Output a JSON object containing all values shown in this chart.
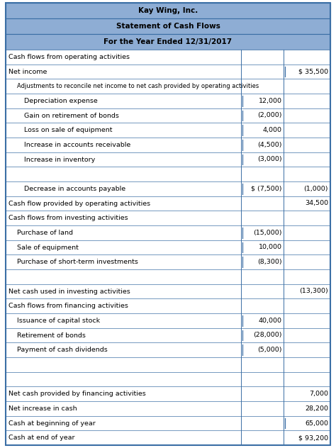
{
  "title1": "Kay Wing, Inc.",
  "title2": "Statement of Cash Flows",
  "title3": "For the Year Ended 12/31/2017",
  "header_bg": "#8eadd4",
  "table_border": "#3a6ea5",
  "rows": [
    {
      "label": "Cash flows from operating activities",
      "col1": "",
      "col2": "",
      "indent": 0,
      "tick1": false,
      "tick2": false
    },
    {
      "label": "Net income",
      "col1": "",
      "col2": "$ 35,500",
      "indent": 0,
      "tick1": false,
      "tick2": true
    },
    {
      "label": "Adjustments to reconcile net income to net cash provided by operating activities",
      "col1": "",
      "col2": "",
      "indent": 1,
      "tick1": false,
      "tick2": false,
      "small": true
    },
    {
      "label": "Depreciation expense",
      "col1": "12,000",
      "col2": "",
      "indent": 2,
      "tick1": true,
      "tick2": false
    },
    {
      "label": "Gain on retirement of bonds",
      "col1": "(2,000)",
      "col2": "",
      "indent": 2,
      "tick1": true,
      "tick2": false
    },
    {
      "label": "Loss on sale of equipment",
      "col1": "4,000",
      "col2": "",
      "indent": 2,
      "tick1": true,
      "tick2": false
    },
    {
      "label": "Increase in accounts receivable",
      "col1": "(4,500)",
      "col2": "",
      "indent": 2,
      "tick1": true,
      "tick2": false
    },
    {
      "label": "Increase in inventory",
      "col1": "(3,000)",
      "col2": "",
      "indent": 2,
      "tick1": true,
      "tick2": false
    },
    {
      "label": "",
      "col1": "",
      "col2": "",
      "indent": 2,
      "tick1": true,
      "tick2": false,
      "empty": true
    },
    {
      "label": "Decrease in accounts payable",
      "col1": "$ (7,500)",
      "col2": "(1,000)",
      "indent": 2,
      "tick1": true,
      "tick2": false
    },
    {
      "label": "Cash flow provided by operating activities",
      "col1": "",
      "col2": "34,500",
      "indent": 0,
      "tick1": false,
      "tick2": false
    },
    {
      "label": "Cash flows from investing activities",
      "col1": "",
      "col2": "",
      "indent": 0,
      "tick1": false,
      "tick2": false
    },
    {
      "label": "Purchase of land",
      "col1": "(15,000)",
      "col2": "",
      "indent": 1,
      "tick1": true,
      "tick2": false
    },
    {
      "label": "Sale of equipment",
      "col1": "10,000",
      "col2": "",
      "indent": 1,
      "tick1": true,
      "tick2": false
    },
    {
      "label": "Purchase of short-term investments",
      "col1": "(8,300)",
      "col2": "",
      "indent": 1,
      "tick1": true,
      "tick2": false
    },
    {
      "label": "",
      "col1": "",
      "col2": "",
      "indent": 1,
      "tick1": true,
      "tick2": false,
      "empty": true
    },
    {
      "label": "Net cash used in investing activities",
      "col1": "",
      "col2": "(13,300)",
      "indent": 0,
      "tick1": false,
      "tick2": false
    },
    {
      "label": "Cash flows from financing activities",
      "col1": "",
      "col2": "",
      "indent": 0,
      "tick1": false,
      "tick2": false
    },
    {
      "label": "Issuance of capital stock",
      "col1": "40,000",
      "col2": "",
      "indent": 1,
      "tick1": true,
      "tick2": false
    },
    {
      "label": "Retirement of bonds",
      "col1": "(28,000)",
      "col2": "",
      "indent": 1,
      "tick1": true,
      "tick2": false
    },
    {
      "label": "Payment of cash dividends",
      "col1": "(5,000)",
      "col2": "",
      "indent": 1,
      "tick1": true,
      "tick2": false
    },
    {
      "label": "",
      "col1": "",
      "col2": "",
      "indent": 1,
      "tick1": true,
      "tick2": false,
      "empty": true
    },
    {
      "label": "",
      "col1": "",
      "col2": "",
      "indent": 0,
      "tick1": false,
      "tick2": false,
      "empty": true
    },
    {
      "label": "Net cash provided by financing activities",
      "col1": "",
      "col2": "7,000",
      "indent": 0,
      "tick1": false,
      "tick2": false
    },
    {
      "label": "Net increase in cash",
      "col1": "",
      "col2": "28,200",
      "indent": 0,
      "tick1": false,
      "tick2": false
    },
    {
      "label": "Cash at beginning of year",
      "col1": "",
      "col2": "65,000",
      "indent": 0,
      "tick1": false,
      "tick2": true
    },
    {
      "label": "Cash at end of year",
      "col1": "",
      "col2": "$ 93,200",
      "indent": 0,
      "tick1": false,
      "tick2": false
    }
  ]
}
